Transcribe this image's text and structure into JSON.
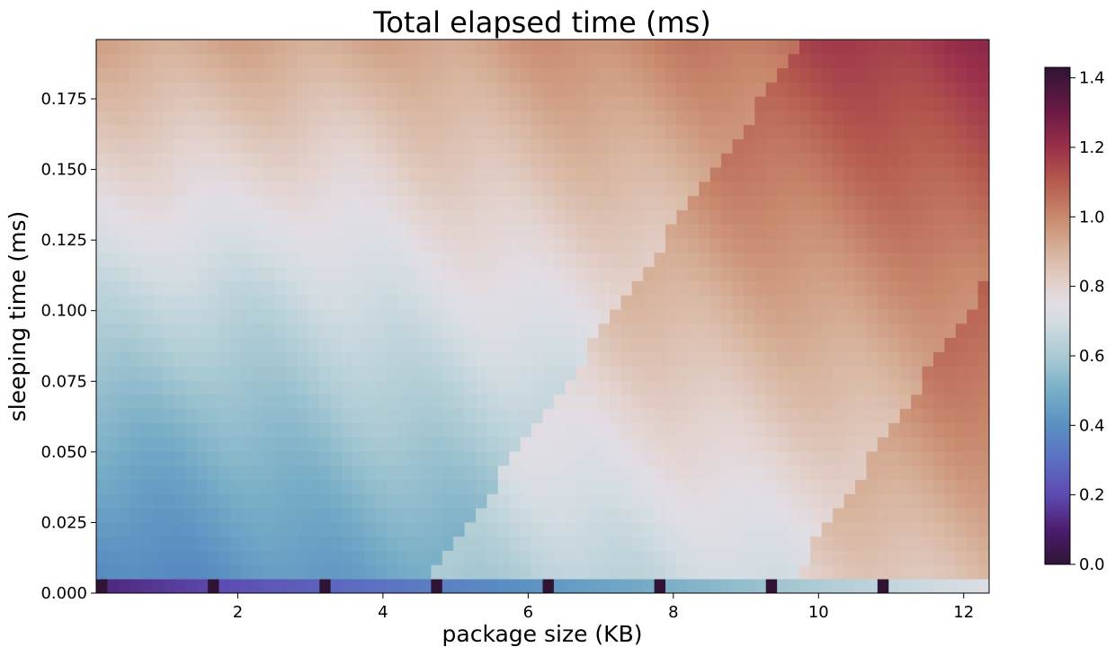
{
  "chart_data": {
    "type": "heatmap",
    "title": "Total elapsed time (ms)",
    "xlabel": "package size (KB)",
    "ylabel": "sleeping time (ms)",
    "xlim": [
      0.05,
      12.35
    ],
    "ylim": [
      0.0,
      0.196
    ],
    "x_ticks": [
      2,
      4,
      6,
      8,
      10,
      12
    ],
    "x_tick_labels": [
      "2",
      "4",
      "6",
      "8",
      "10",
      "12"
    ],
    "y_ticks": [
      0.0,
      0.025,
      0.05,
      0.075,
      0.1,
      0.125,
      0.15,
      0.175
    ],
    "y_tick_labels": [
      "0.000",
      "0.025",
      "0.050",
      "0.075",
      "0.100",
      "0.125",
      "0.150",
      "0.175"
    ],
    "colormap": "twilight_shifted",
    "colorbar": {
      "min": 0.0,
      "max": 1.43,
      "ticks": [
        0.0,
        0.2,
        0.4,
        0.6,
        0.8,
        1.0,
        1.2,
        1.4
      ],
      "tick_labels": [
        "0.0",
        "0.2",
        "0.4",
        "0.6",
        "0.8",
        "1.0",
        "1.2",
        "1.4"
      ],
      "stops": [
        {
          "v": 0.0,
          "color": "#2f1436"
        },
        {
          "v": 0.1,
          "color": "#4c1d6e"
        },
        {
          "v": 0.2,
          "color": "#5d4bb0"
        },
        {
          "v": 0.3,
          "color": "#5c6fc1"
        },
        {
          "v": 0.4,
          "color": "#5a8fc2"
        },
        {
          "v": 0.5,
          "color": "#78aec6"
        },
        {
          "v": 0.6,
          "color": "#aacad3"
        },
        {
          "v": 0.7,
          "color": "#d4dde2"
        },
        {
          "v": 0.75,
          "color": "#e2dde4"
        },
        {
          "v": 0.8,
          "color": "#e3d3cf"
        },
        {
          "v": 0.9,
          "color": "#d7b39c"
        },
        {
          "v": 1.0,
          "color": "#c8896d"
        },
        {
          "v": 1.1,
          "color": "#b55b4e"
        },
        {
          "v": 1.2,
          "color": "#9a304b"
        },
        {
          "v": 1.3,
          "color": "#6c1a45"
        },
        {
          "v": 1.43,
          "color": "#2f1436"
        }
      ]
    },
    "grid": {
      "nx": 80,
      "ny": 39,
      "x_range": [
        0.05,
        12.35
      ],
      "y_range": [
        0.0,
        0.196
      ],
      "note_rows": "row 0 is the bottom row (sleeping time 0). Cell values estimated from the colormap.",
      "bottom_row_dark_columns": [
        0,
        10,
        20,
        30,
        40,
        50,
        60,
        70
      ],
      "bottom_row": {
        "start": 0.12,
        "end": 0.72
      },
      "regime_bands": [
        {
          "x_at_bottom": 0.05,
          "x_at_top": 4.5,
          "slope": 0.0205
        },
        {
          "x_at_bottom": 4.5,
          "x_at_top": 9.8,
          "slope": 0.0205
        },
        {
          "x_at_bottom": 9.5,
          "x_at_top": 14.5,
          "slope": 0.0205
        }
      ]
    }
  }
}
